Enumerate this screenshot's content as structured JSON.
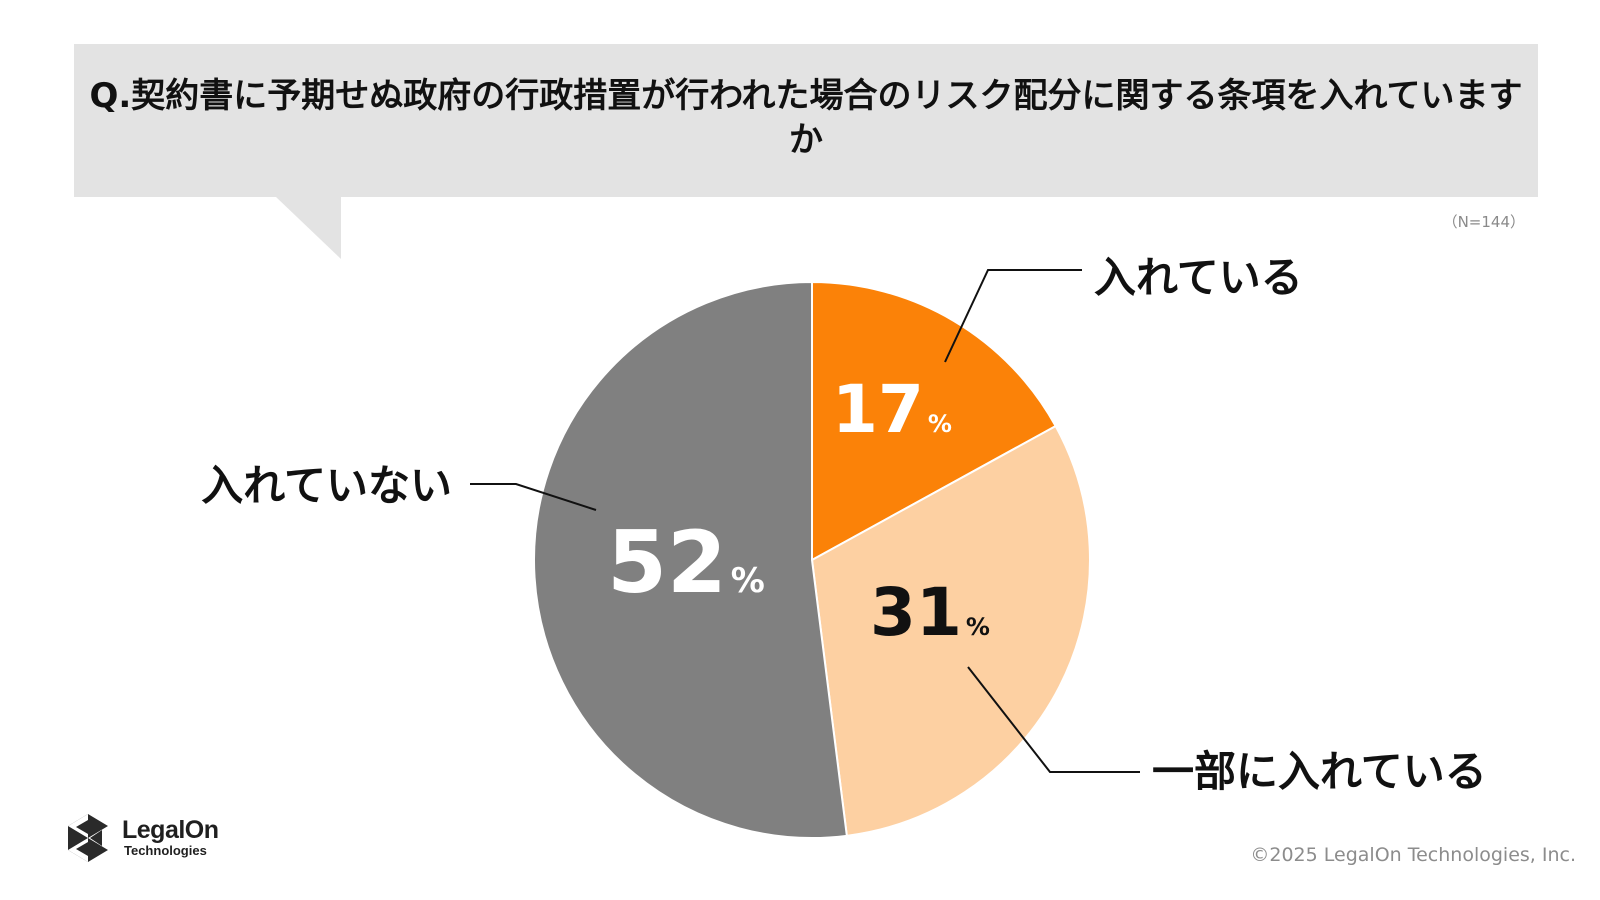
{
  "question": "Q.契約書に予期せぬ政府の行政措置が行われた場合のリスク配分に関する条項を入れていますか",
  "sample_size": "（N=144）",
  "chart_data": {
    "type": "pie",
    "title": "Q.契約書に予期せぬ政府の行政措置が行われた場合のリスク配分に関する条項を入れていますか",
    "unit": "%",
    "categories": [
      "入れている",
      "一部に入れている",
      "入れていない"
    ],
    "values": [
      17,
      31,
      52
    ],
    "colors": [
      "#fb8208",
      "#fdd0a2",
      "#808080"
    ],
    "value_label_colors": [
      "#ffffff",
      "#111111",
      "#ffffff"
    ],
    "start_angle_deg": 0,
    "direction": "clockwise",
    "legend": "none",
    "labels": "outside-with-leader-lines"
  },
  "logo": {
    "name": "LegalOn",
    "sub": "Technologies",
    "icon": "legalon-hexagon-logo-icon"
  },
  "copyright": "©2025 LegalOn Technologies, Inc."
}
